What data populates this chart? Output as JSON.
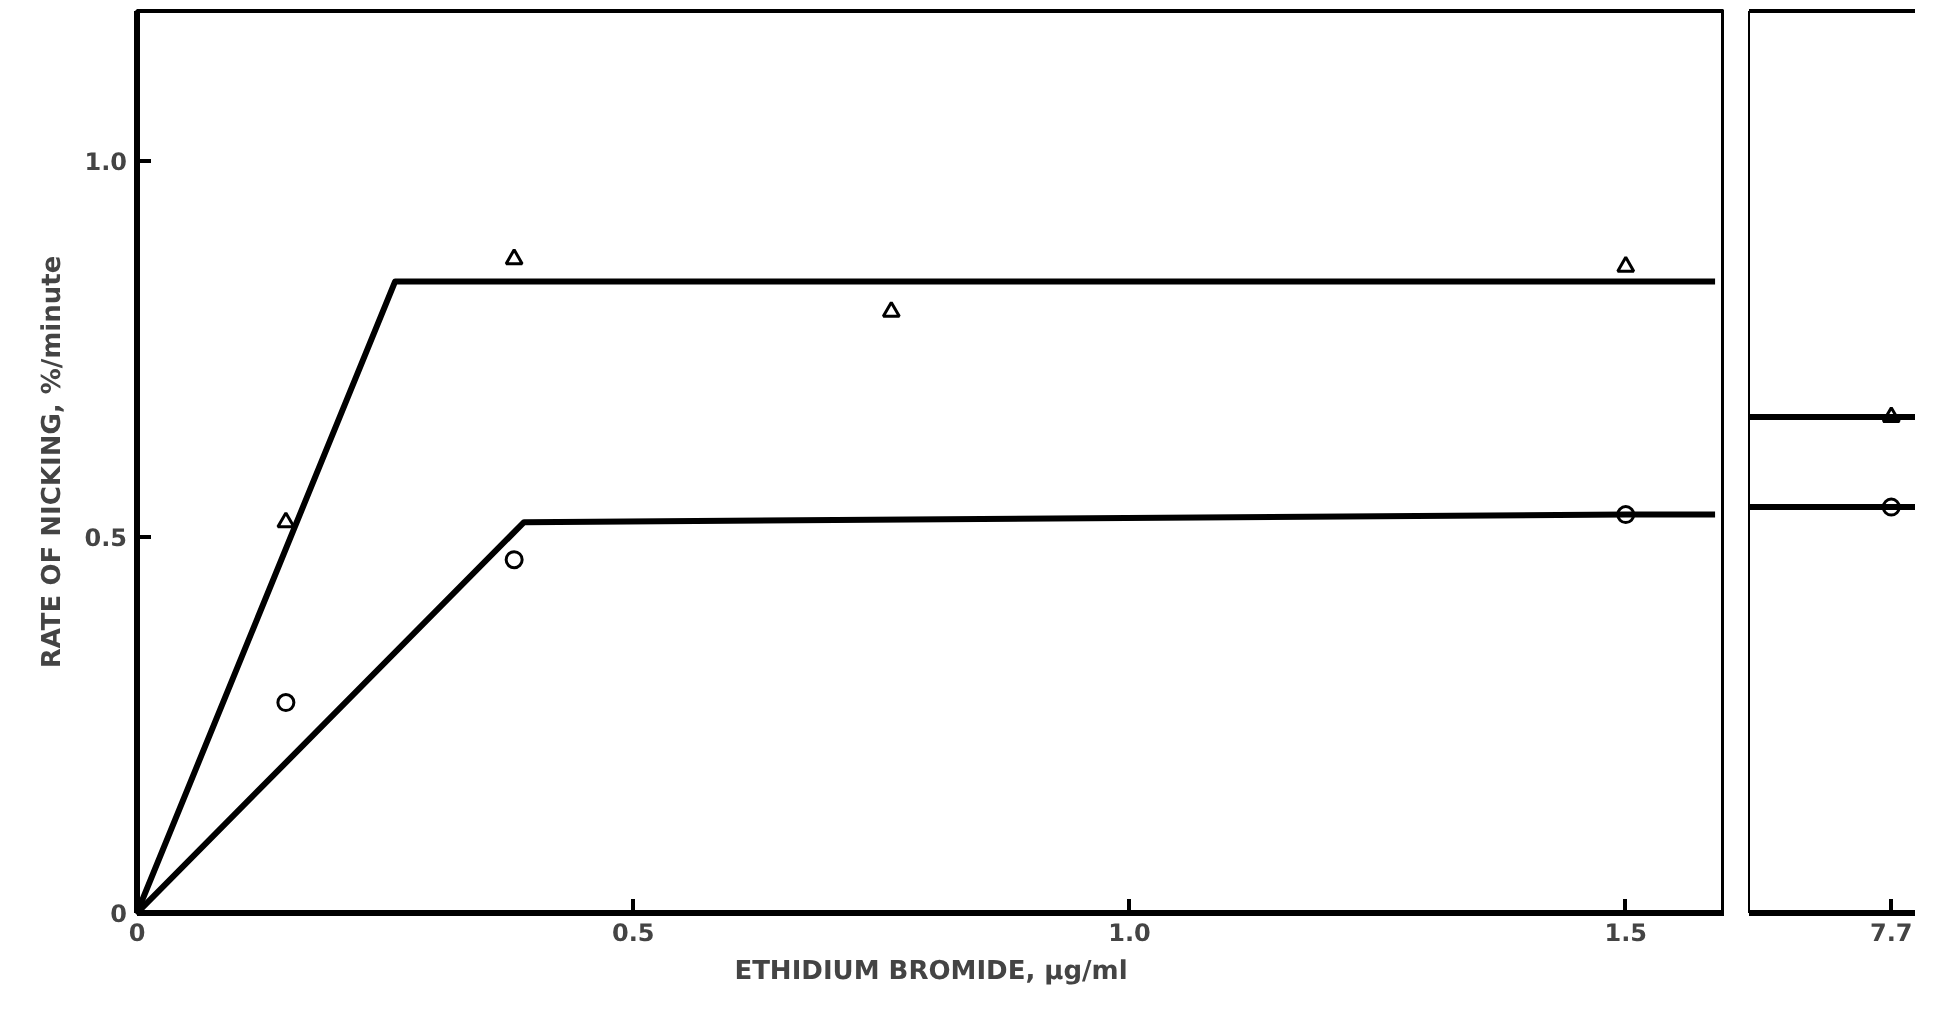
{
  "chart_data": [
    {
      "type": "scatter",
      "xlabel": "ETHIDIUM BROMIDE, µg/ml",
      "ylabel": "RATE OF NICKING, %/minute",
      "xlim": [
        0,
        1.6
      ],
      "ylim": [
        0,
        1.2
      ],
      "xticks": [
        0,
        0.5,
        {
          "value": 1.0,
          "label": "1.0"
        },
        1.5
      ],
      "yticks": [
        0,
        0.5,
        {
          "value": 1.0,
          "label": "1.0"
        }
      ],
      "grid": false,
      "series": [
        {
          "marker": "triangle",
          "color": "#000000",
          "x": [
            0.15,
            0.38,
            0.76,
            1.5
          ],
          "values": [
            0.52,
            0.87,
            0.8,
            0.86
          ]
        },
        {
          "marker": "circle",
          "color": "#000000",
          "x": [
            0.15,
            0.38,
            1.5
          ],
          "values": [
            0.28,
            0.47,
            0.53
          ]
        },
        {
          "type": "line",
          "color": "#000000",
          "x": [
            0,
            0.26,
            1.59
          ],
          "values": [
            0,
            0.84,
            0.84
          ]
        },
        {
          "type": "line",
          "color": "#000000",
          "x": [
            0,
            0.39,
            1.5,
            1.59
          ],
          "values": [
            0,
            0.52,
            0.53,
            0.53
          ]
        }
      ]
    },
    {
      "type": "scatter",
      "categories": [
        "7.7"
      ],
      "ylim": [
        0,
        1.2
      ],
      "tick_labels": "x",
      "grid": false,
      "ref_lines": [
        {
          "axis": "y",
          "value": 0.66,
          "color": "#000000"
        },
        {
          "axis": "y",
          "value": 0.54,
          "color": "#000000"
        }
      ],
      "series": [
        {
          "marker": "triangle",
          "color": "#000000",
          "values": [
            0.66
          ]
        },
        {
          "marker": "circle",
          "color": "#000000",
          "values": [
            0.54
          ]
        }
      ]
    }
  ]
}
